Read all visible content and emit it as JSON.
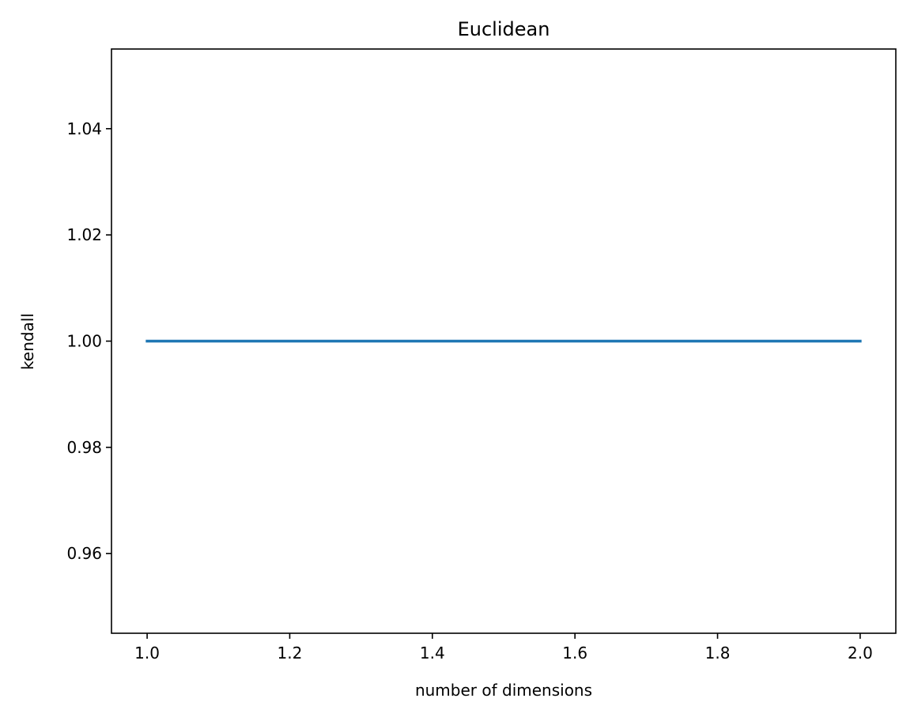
{
  "chart_data": {
    "type": "line",
    "title": "Euclidean",
    "xlabel": "number of dimensions",
    "ylabel": "kendall",
    "xlim": [
      0.95,
      2.05
    ],
    "ylim": [
      0.945,
      1.055
    ],
    "xticks": [
      1.0,
      1.2,
      1.4,
      1.6,
      1.8,
      2.0
    ],
    "xtick_labels": [
      "1.0",
      "1.2",
      "1.4",
      "1.6",
      "1.8",
      "2.0"
    ],
    "yticks": [
      0.96,
      0.98,
      1.0,
      1.02,
      1.04
    ],
    "ytick_labels": [
      "0.96",
      "0.98",
      "1.00",
      "1.02",
      "1.04"
    ],
    "grid": false,
    "legend": "none",
    "series": [
      {
        "color": "#1f77b4",
        "x": [
          1,
          2
        ],
        "y": [
          1.0,
          1.0
        ]
      }
    ]
  }
}
